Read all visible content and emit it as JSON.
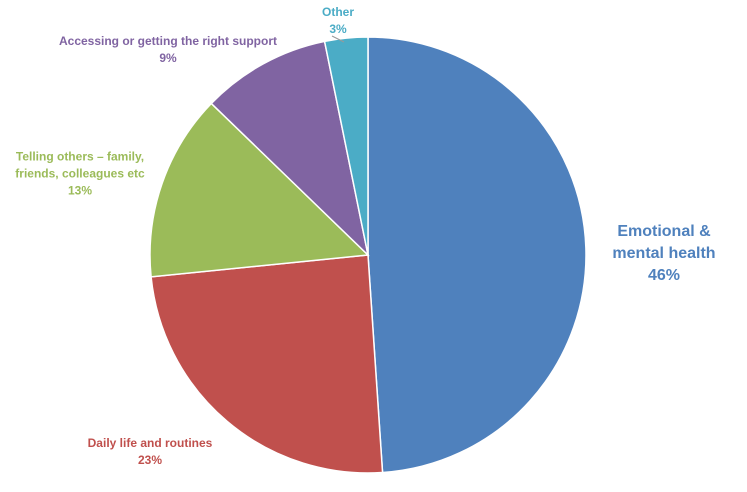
{
  "chart_data": {
    "type": "pie",
    "categories": [
      "Emotional & mental health",
      "Daily life and routines",
      "Telling others – family, friends, colleagues etc",
      "Accessing or getting the right support",
      "Other"
    ],
    "values": [
      46,
      23,
      13,
      9,
      3
    ],
    "value_labels": [
      "46%",
      "23%",
      "13%",
      "9%",
      "3%"
    ],
    "colors": [
      "#4f81bd",
      "#c0504d",
      "#9bbb59",
      "#8064a2",
      "#4bacc6"
    ]
  }
}
